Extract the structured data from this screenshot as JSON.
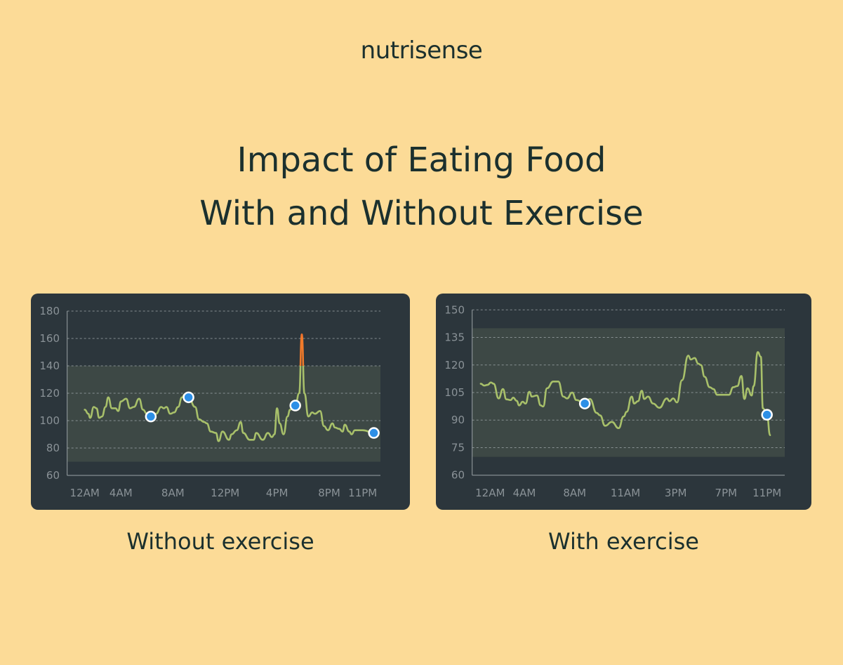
{
  "brand": "nutrisense",
  "title_line1": "Impact of Eating Food",
  "title_line2": "With and Without Exercise",
  "colors": {
    "background": "#fcdb97",
    "card": "#2c363c",
    "target_band": "#3d4845",
    "line": "#a8c06a",
    "spike": "#f07a2a",
    "marker": "#2d8fe6"
  },
  "chart_data": [
    {
      "type": "line",
      "caption": "Without exercise",
      "ylim": [
        60,
        180
      ],
      "yticks": [
        60,
        80,
        100,
        120,
        140,
        160,
        180
      ],
      "xtick_labels": [
        "12AM",
        "4AM",
        "8AM",
        "12PM",
        "4PM",
        "8PM",
        "11PM"
      ],
      "xtick_hours": [
        0,
        4,
        8,
        12,
        16,
        20,
        23
      ],
      "target_range": [
        70,
        140
      ],
      "grid": true,
      "x": [
        0,
        0.4,
        0.6,
        1.0,
        1.3,
        1.6,
        1.9,
        2.3,
        2.6,
        3.0,
        3.4,
        3.7,
        4.0,
        4.4,
        4.7,
        5.0,
        5.4,
        5.7,
        6.0,
        6.3,
        6.7,
        7.1,
        7.3,
        7.5,
        7.8,
        8.1,
        8.4,
        8.7,
        8.9,
        9.2,
        9.7,
        10.0,
        10.4,
        10.6,
        10.9,
        11.3,
        11.5,
        11.8,
        12.3,
        12.5,
        12.9,
        13.2,
        13.4,
        13.9,
        14.2,
        14.4,
        14.9,
        15.3,
        15.6,
        15.8,
        16.0,
        16.2,
        16.5,
        16.8,
        17.0,
        17.4,
        17.7,
        17.9,
        18.1,
        18.4,
        18.7,
        18.9,
        19.3,
        19.6,
        19.9,
        20.3,
        20.5,
        20.9,
        21.2,
        21.4,
        21.8,
        22.0,
        22.3,
        23.0,
        24.0
      ],
      "y": [
        108,
        105,
        102,
        110,
        109,
        102,
        103,
        110,
        117,
        109,
        109,
        107,
        114,
        116,
        109,
        110,
        116,
        108,
        105,
        103,
        105,
        110,
        109,
        110,
        105,
        106,
        110,
        117,
        119,
        117,
        110,
        101,
        99,
        98,
        92,
        91,
        85,
        92,
        86,
        90,
        93,
        99,
        91,
        86,
        86,
        91,
        86,
        91,
        88,
        90,
        109,
        98,
        90,
        103,
        108,
        111,
        120,
        163,
        120,
        103,
        106,
        105,
        107,
        96,
        93,
        98,
        95,
        94,
        92,
        97,
        92,
        90,
        93,
        93,
        91
      ],
      "markers": [
        {
          "x": 6.3,
          "y": 103
        },
        {
          "x": 9.2,
          "y": 117
        },
        {
          "x": 17.4,
          "y": 111
        },
        {
          "x": 24.0,
          "y": 91
        }
      ]
    },
    {
      "type": "line",
      "caption": "With exercise",
      "ylim": [
        60,
        150
      ],
      "yticks": [
        60,
        75,
        90,
        105,
        120,
        135,
        150
      ],
      "xtick_labels": [
        "12AM",
        "4AM",
        "8AM",
        "11AM",
        "3PM",
        "7PM",
        "11PM"
      ],
      "xtick_hours": [
        0,
        4,
        8,
        11,
        15,
        19,
        23
      ],
      "target_range": [
        70,
        140
      ],
      "grid": true,
      "x": [
        -1.1,
        -0.7,
        -0.3,
        0.1,
        0.4,
        1.0,
        1.5,
        1.9,
        2.4,
        2.7,
        3.1,
        3.4,
        3.8,
        4.1,
        4.4,
        4.6,
        5.0,
        5.3,
        5.5,
        5.8,
        6.3,
        6.7,
        7.1,
        7.4,
        7.8,
        8.1,
        8.6,
        8.9,
        9.3,
        9.5,
        9.8,
        10.2,
        10.6,
        10.9,
        11.1,
        11.5,
        11.7,
        12.0,
        12.3,
        12.5,
        12.8,
        13.2,
        13.7,
        14.3,
        14.5,
        14.8,
        15.1,
        15.5,
        16.0,
        16.2,
        16.5,
        16.8,
        17.0,
        17.3,
        17.7,
        18.0,
        18.3,
        18.8,
        19.3,
        19.7,
        20.1,
        20.5,
        20.8,
        21.1,
        21.5,
        21.7,
        22.1,
        22.4,
        22.6,
        23.0,
        23.3
      ],
      "y": [
        109.8,
        108.8,
        109.2,
        110.5,
        109.8,
        101.8,
        106.9,
        101.3,
        100.9,
        102.2,
        100.5,
        98,
        100,
        99,
        105.4,
        102.8,
        103.4,
        98,
        97.4,
        107.3,
        111,
        111,
        102.8,
        101.8,
        105,
        100.9,
        99,
        101.5,
        93.9,
        92.6,
        86.9,
        89,
        85.6,
        92,
        94.5,
        102.8,
        99,
        100.3,
        106,
        101.5,
        102.8,
        99,
        96.7,
        101.8,
        100.3,
        101.8,
        99.6,
        111.7,
        125.1,
        123,
        123.8,
        120.7,
        120,
        113.6,
        107.9,
        106.9,
        103.8,
        103.8,
        103.8,
        107.9,
        108.5,
        114,
        101.5,
        107.3,
        103.4,
        108.5,
        127,
        124.5,
        96.4,
        92.9,
        81.8
      ],
      "markers": [
        {
          "x": 8.6,
          "y": 99
        },
        {
          "x": 23.0,
          "y": 92.9
        }
      ]
    }
  ]
}
